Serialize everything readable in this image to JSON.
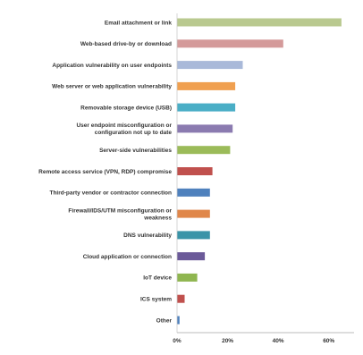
{
  "chart_data": {
    "type": "bar",
    "orientation": "horizontal",
    "categories": [
      "Email attachment or link",
      "Web-based drive-by or download",
      "Application vulnerability on user endpoints",
      "Web server or web application vulnerability",
      "Removable storage device (USB)",
      "User endpoint misconfiguration or configuration not up to date",
      "Server-side vulnerabilities",
      "Remote access service (VPN, RDP) compromise",
      "Third-party vendor or contractor connection",
      "Firewall/IDS/UTM misconfiguration or weakness",
      "DNS vulnerability",
      "Cloud application or connection",
      "IoT device",
      "ICS system",
      "Other"
    ],
    "values": [
      65,
      42,
      26,
      23,
      23,
      22,
      21,
      14,
      13,
      13,
      13,
      11,
      8,
      3,
      1
    ],
    "colors": [
      "#b9c98f",
      "#d49a9a",
      "#a9b9d9",
      "#f0a050",
      "#4aaec6",
      "#8b7bb0",
      "#9bbb59",
      "#c0504d",
      "#4f81bd",
      "#e0874a",
      "#3a94a8",
      "#6b5a99",
      "#8fb650",
      "#c0504d",
      "#4f81bd"
    ],
    "xlim": [
      0,
      70
    ],
    "xticks": [
      "0%",
      "20%",
      "40%",
      "60%"
    ],
    "xtick_values": [
      0,
      20,
      40,
      60
    ],
    "grid": false,
    "legend": "none"
  }
}
